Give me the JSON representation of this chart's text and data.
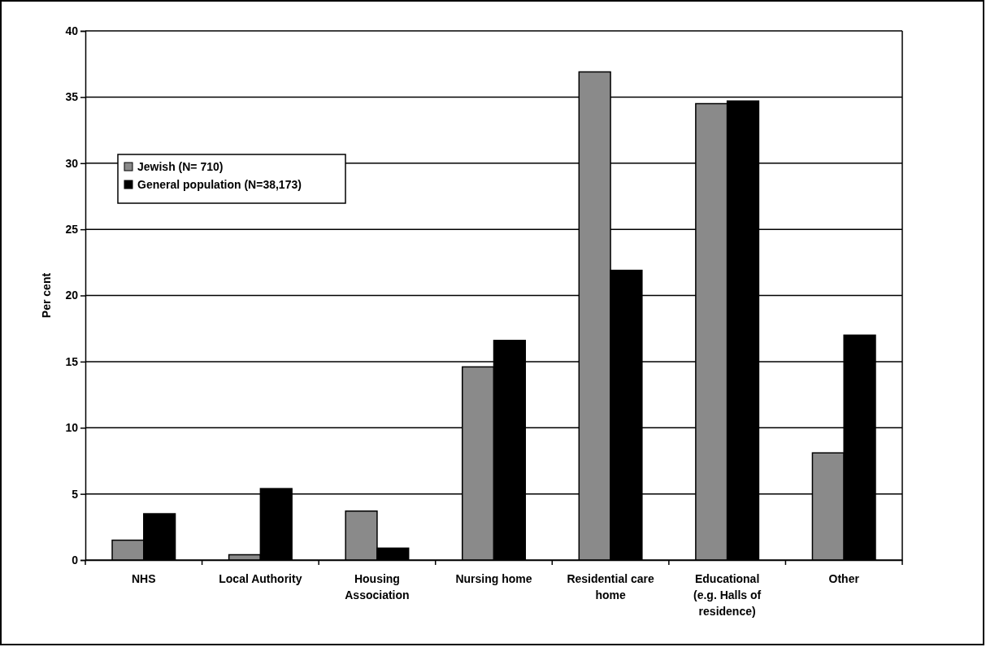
{
  "chart_data": {
    "type": "bar",
    "ylabel": "Per cent",
    "categories": [
      "NHS",
      "Local Authority",
      "Housing Association",
      "Nursing home",
      "Residential care home",
      "Educational (e.g. Halls of residence)",
      "Other"
    ],
    "series": [
      {
        "name": "Jewish (N= 710)",
        "color": "#8a8a8a",
        "values": [
          1.5,
          0.4,
          3.7,
          14.6,
          36.9,
          34.5,
          8.1
        ]
      },
      {
        "name": "General population (N=38,173)",
        "color": "#000000",
        "values": [
          3.5,
          5.4,
          0.9,
          16.6,
          21.9,
          34.7,
          17.0
        ]
      }
    ],
    "ylim": [
      0,
      40
    ],
    "yticks": [
      0,
      5,
      10,
      15,
      20,
      25,
      30,
      35,
      40
    ],
    "grid": "y",
    "legend": "top left"
  }
}
